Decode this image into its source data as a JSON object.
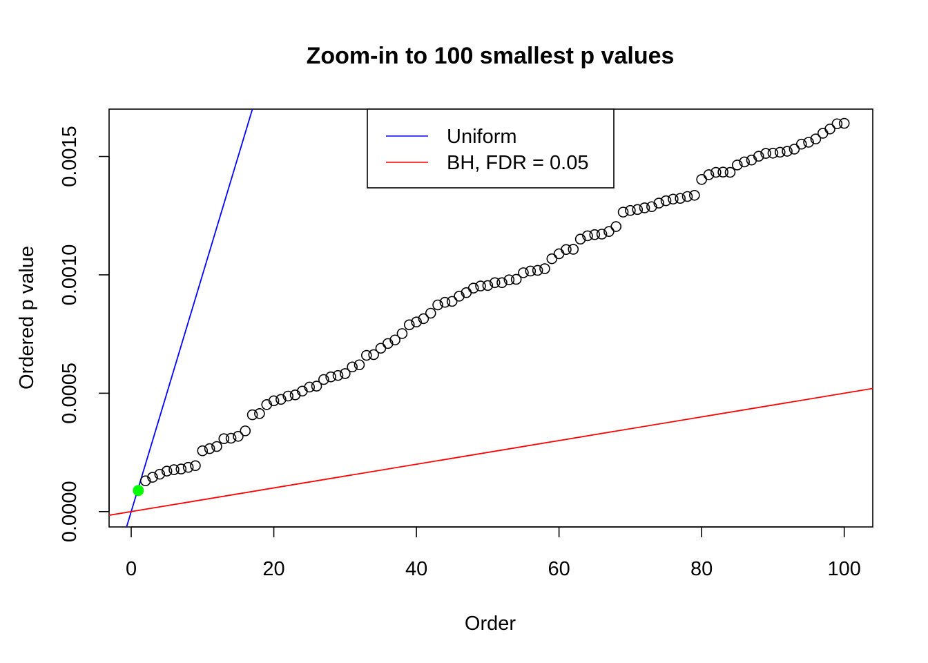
{
  "chart_data": {
    "type": "scatter",
    "title": "Zoom-in to 100 smallest p values",
    "xlabel": "Order",
    "ylabel": "Ordered p value",
    "xlim": [
      -3.1,
      104
    ],
    "ylim": [
      -6.48e-05,
      0.0017
    ],
    "xticks": [
      0,
      20,
      40,
      60,
      80,
      100
    ],
    "xtick_labels": [
      "0",
      "20",
      "40",
      "60",
      "80",
      "100"
    ],
    "yticks": [
      0,
      0.0005,
      0.001,
      0.0015
    ],
    "ytick_labels": [
      "0.0000",
      "0.0005",
      "0.0010",
      "0.0015"
    ],
    "grid": false,
    "legend_position": "top-center",
    "legend": [
      {
        "label": "Uniform",
        "color": "#0000ff"
      },
      {
        "label": "BH, FDR = 0.05",
        "color": "#ff0000"
      }
    ],
    "lines": [
      {
        "name": "Uniform",
        "color": "#0000ff",
        "slope": 0.0001,
        "intercept": 0
      },
      {
        "name": "BH, FDR = 0.05",
        "color": "#ff0000",
        "slope": 5e-06,
        "intercept": 0
      }
    ],
    "highlight": {
      "x": 1,
      "y": 8.9e-05,
      "color": "#00ff00"
    },
    "x": [
      1,
      2,
      3,
      4,
      5,
      6,
      7,
      8,
      9,
      10,
      11,
      12,
      13,
      14,
      15,
      16,
      17,
      18,
      19,
      20,
      21,
      22,
      23,
      24,
      25,
      26,
      27,
      28,
      29,
      30,
      31,
      32,
      33,
      34,
      35,
      36,
      37,
      38,
      39,
      40,
      41,
      42,
      43,
      44,
      45,
      46,
      47,
      48,
      49,
      50,
      51,
      52,
      53,
      54,
      55,
      56,
      57,
      58,
      59,
      60,
      61,
      62,
      63,
      64,
      65,
      66,
      67,
      68,
      69,
      70,
      71,
      72,
      73,
      74,
      75,
      76,
      77,
      78,
      79,
      80,
      81,
      82,
      83,
      84,
      85,
      86,
      87,
      88,
      89,
      90,
      91,
      92,
      93,
      94,
      95,
      96,
      97,
      98,
      99,
      100
    ],
    "y": [
      8.9e-05,
      0.00013,
      0.000145,
      0.000158,
      0.000171,
      0.000177,
      0.00018,
      0.000187,
      0.000194,
      0.000257,
      0.000266,
      0.000275,
      0.000308,
      0.00031,
      0.000318,
      0.000341,
      0.000409,
      0.000414,
      0.000452,
      0.000468,
      0.000474,
      0.000488,
      0.000493,
      0.000509,
      0.000526,
      0.00053,
      0.000558,
      0.000569,
      0.000575,
      0.000583,
      0.000611,
      0.00062,
      0.00066,
      0.000663,
      0.00069,
      0.00071,
      0.000725,
      0.000752,
      0.000789,
      0.000801,
      0.000815,
      0.000838,
      0.000873,
      0.000884,
      0.000888,
      0.00091,
      0.000925,
      0.000944,
      0.000953,
      0.000955,
      0.000967,
      0.000967,
      0.000979,
      0.000981,
      0.001009,
      0.001016,
      0.001019,
      0.001026,
      0.001068,
      0.001089,
      0.001107,
      0.001108,
      0.001151,
      0.001165,
      0.00117,
      0.001172,
      0.001183,
      0.001204,
      0.001265,
      0.001272,
      0.001276,
      0.001283,
      0.001288,
      0.001303,
      0.001313,
      0.00132,
      0.001323,
      0.001331,
      0.001336,
      0.001403,
      0.001423,
      0.001433,
      0.001434,
      0.001433,
      0.001464,
      0.001477,
      0.001485,
      0.001501,
      0.001513,
      0.001514,
      0.001518,
      0.001522,
      0.001531,
      0.001552,
      0.00156,
      0.001574,
      0.001598,
      0.001616,
      0.001638,
      0.00164
    ]
  }
}
